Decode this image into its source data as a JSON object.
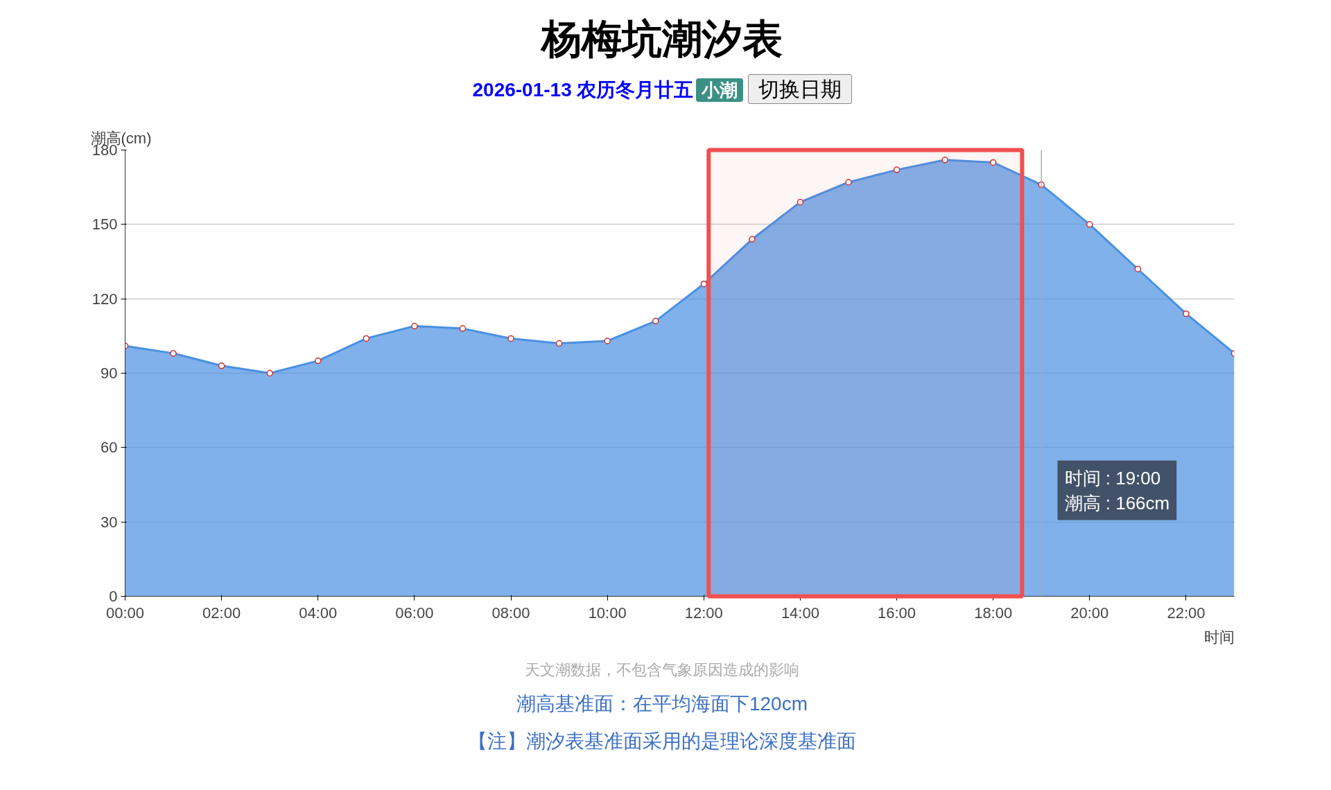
{
  "chart_data": {
    "type": "area",
    "title": "杨梅坑潮汐表",
    "subtitle": "2026-01-13 农历冬月廿五",
    "xlabel": "时间",
    "ylabel": "潮高(cm)",
    "x": [
      0,
      1,
      2,
      3,
      4,
      5,
      6,
      7,
      8,
      9,
      10,
      11,
      12,
      13,
      14,
      15,
      16,
      17,
      18,
      19,
      20,
      21,
      22,
      23
    ],
    "series": [
      {
        "color": "#4a90e2",
        "values": [
          101,
          98,
          93,
          90,
          95,
          104,
          109,
          108,
          104,
          102,
          103,
          111,
          126,
          144,
          159,
          167,
          172,
          176,
          175,
          166,
          150,
          132,
          114,
          98
        ]
      }
    ],
    "xlim": [
      0,
      23
    ],
    "ylim": [
      0,
      180
    ],
    "xticks": [
      {
        "value": 0,
        "label": "00:00"
      },
      {
        "value": 2,
        "label": "02:00"
      },
      {
        "value": 4,
        "label": "04:00"
      },
      {
        "value": 6,
        "label": "06:00"
      },
      {
        "value": 8,
        "label": "08:00"
      },
      {
        "value": 10,
        "label": "10:00"
      },
      {
        "value": 12,
        "label": "12:00"
      },
      {
        "value": 14,
        "label": "14:00"
      },
      {
        "value": 16,
        "label": "16:00"
      },
      {
        "value": 18,
        "label": "18:00"
      },
      {
        "value": 20,
        "label": "20:00"
      },
      {
        "value": 22,
        "label": "22:00"
      }
    ],
    "yticks": [
      0,
      30,
      60,
      90,
      120,
      150,
      180
    ],
    "grid": "y",
    "marker": "circle",
    "line_style": "solid",
    "ref_lines": [
      {
        "axis": "x",
        "value": 19,
        "label": null,
        "color": "#aaaaaa"
      }
    ],
    "bands": [
      {
        "axis": "x",
        "from": 12.1,
        "to": 18.6,
        "color": "#f05050"
      }
    ],
    "annotations": [
      "小潮",
      "切换日期",
      "时间 : 19:00\n潮高 : 166cm",
      "天文潮数据，不包含气象原因造成的影响",
      "潮高基准面：在平均海面下120cm",
      "【注】潮汐表基准面采用的是理论深度基准面"
    ]
  }
}
